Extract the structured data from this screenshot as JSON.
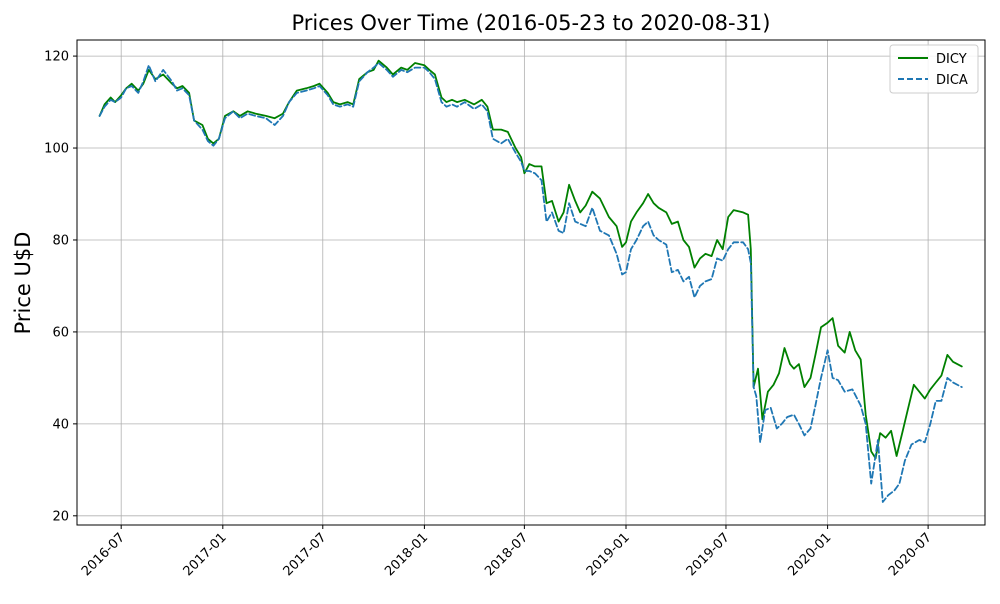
{
  "chart_data": {
    "type": "line",
    "title": "Prices Over Time (2016-05-23 to 2020-08-31)",
    "xlabel": "",
    "ylabel": "Price U$D",
    "x_range": [
      "2016-04-12",
      "2020-10-12"
    ],
    "ylim": [
      18,
      123.5
    ],
    "x_ticks": [
      "2016-07",
      "2017-01",
      "2017-07",
      "2018-01",
      "2018-07",
      "2019-01",
      "2019-07",
      "2020-01",
      "2020-07"
    ],
    "y_ticks": [
      20,
      40,
      60,
      80,
      100,
      120
    ],
    "grid": true,
    "legend_position": "top-right",
    "series": [
      {
        "name": "DICY",
        "color": "#008000",
        "style": "solid",
        "points": [
          [
            "2016-05-23",
            107
          ],
          [
            "2016-06-01",
            109.5
          ],
          [
            "2016-06-12",
            111
          ],
          [
            "2016-06-20",
            110
          ],
          [
            "2016-07-01",
            111.5
          ],
          [
            "2016-07-10",
            113
          ],
          [
            "2016-07-20",
            114
          ],
          [
            "2016-08-01",
            112.5
          ],
          [
            "2016-08-10",
            114
          ],
          [
            "2016-08-20",
            117
          ],
          [
            "2016-09-01",
            115
          ],
          [
            "2016-09-15",
            116
          ],
          [
            "2016-10-01",
            114
          ],
          [
            "2016-10-10",
            113
          ],
          [
            "2016-10-20",
            113.5
          ],
          [
            "2016-11-01",
            112
          ],
          [
            "2016-11-10",
            106
          ],
          [
            "2016-11-25",
            105
          ],
          [
            "2016-12-05",
            102
          ],
          [
            "2016-12-15",
            101
          ],
          [
            "2016-12-25",
            102
          ],
          [
            "2017-01-05",
            107
          ],
          [
            "2017-01-20",
            108
          ],
          [
            "2017-02-01",
            107
          ],
          [
            "2017-02-15",
            108
          ],
          [
            "2017-03-01",
            107.5
          ],
          [
            "2017-03-20",
            107
          ],
          [
            "2017-04-05",
            106.5
          ],
          [
            "2017-04-20",
            107.5
          ],
          [
            "2017-05-01",
            110
          ],
          [
            "2017-05-15",
            112.5
          ],
          [
            "2017-06-01",
            113
          ],
          [
            "2017-06-15",
            113.5
          ],
          [
            "2017-06-25",
            114
          ],
          [
            "2017-07-10",
            112
          ],
          [
            "2017-07-20",
            110
          ],
          [
            "2017-08-01",
            109.5
          ],
          [
            "2017-08-15",
            110
          ],
          [
            "2017-08-25",
            109.5
          ],
          [
            "2017-09-05",
            115
          ],
          [
            "2017-09-20",
            116.5
          ],
          [
            "2017-10-01",
            117
          ],
          [
            "2017-10-10",
            119
          ],
          [
            "2017-10-25",
            117.5
          ],
          [
            "2017-11-05",
            116
          ],
          [
            "2017-11-20",
            117.5
          ],
          [
            "2017-12-01",
            117
          ],
          [
            "2017-12-15",
            118.5
          ],
          [
            "2018-01-01",
            118
          ],
          [
            "2018-01-10",
            117
          ],
          [
            "2018-01-20",
            116
          ],
          [
            "2018-02-01",
            111
          ],
          [
            "2018-02-10",
            110
          ],
          [
            "2018-02-20",
            110.5
          ],
          [
            "2018-03-01",
            110
          ],
          [
            "2018-03-15",
            110.5
          ],
          [
            "2018-04-01",
            109.5
          ],
          [
            "2018-04-15",
            110.5
          ],
          [
            "2018-04-25",
            109
          ],
          [
            "2018-05-05",
            104
          ],
          [
            "2018-05-20",
            104
          ],
          [
            "2018-06-01",
            103.5
          ],
          [
            "2018-06-15",
            100
          ],
          [
            "2018-06-25",
            98
          ],
          [
            "2018-07-01",
            94.5
          ],
          [
            "2018-07-10",
            96.5
          ],
          [
            "2018-07-20",
            96
          ],
          [
            "2018-08-01",
            96
          ],
          [
            "2018-08-10",
            88
          ],
          [
            "2018-08-20",
            88.5
          ],
          [
            "2018-09-01",
            84
          ],
          [
            "2018-09-10",
            86
          ],
          [
            "2018-09-20",
            92
          ],
          [
            "2018-10-01",
            88.5
          ],
          [
            "2018-10-10",
            86
          ],
          [
            "2018-10-20",
            87.5
          ],
          [
            "2018-11-01",
            90.5
          ],
          [
            "2018-11-15",
            89
          ],
          [
            "2018-12-01",
            85
          ],
          [
            "2018-12-15",
            83
          ],
          [
            "2018-12-25",
            78.5
          ],
          [
            "2019-01-01",
            79.5
          ],
          [
            "2019-01-10",
            84
          ],
          [
            "2019-01-20",
            86
          ],
          [
            "2019-02-01",
            88
          ],
          [
            "2019-02-10",
            90
          ],
          [
            "2019-02-20",
            88
          ],
          [
            "2019-03-01",
            87
          ],
          [
            "2019-03-15",
            86
          ],
          [
            "2019-03-25",
            83.5
          ],
          [
            "2019-04-05",
            84
          ],
          [
            "2019-04-15",
            80
          ],
          [
            "2019-04-25",
            78.5
          ],
          [
            "2019-05-05",
            74
          ],
          [
            "2019-05-15",
            76
          ],
          [
            "2019-05-25",
            77
          ],
          [
            "2019-06-05",
            76.5
          ],
          [
            "2019-06-15",
            80
          ],
          [
            "2019-06-25",
            78
          ],
          [
            "2019-07-05",
            85
          ],
          [
            "2019-07-15",
            86.5
          ],
          [
            "2019-08-01",
            86
          ],
          [
            "2019-08-10",
            85.5
          ],
          [
            "2019-08-15",
            78
          ],
          [
            "2019-08-20",
            48
          ],
          [
            "2019-08-28",
            52
          ],
          [
            "2019-09-05",
            41
          ],
          [
            "2019-09-15",
            47
          ],
          [
            "2019-09-25",
            48.5
          ],
          [
            "2019-10-05",
            51
          ],
          [
            "2019-10-15",
            56.5
          ],
          [
            "2019-10-25",
            53
          ],
          [
            "2019-11-01",
            52
          ],
          [
            "2019-11-10",
            53
          ],
          [
            "2019-11-20",
            48
          ],
          [
            "2019-12-01",
            50
          ],
          [
            "2019-12-10",
            55
          ],
          [
            "2019-12-20",
            61
          ],
          [
            "2020-01-01",
            62
          ],
          [
            "2020-01-10",
            63
          ],
          [
            "2020-01-20",
            57
          ],
          [
            "2020-02-01",
            55.5
          ],
          [
            "2020-02-10",
            60
          ],
          [
            "2020-02-20",
            56
          ],
          [
            "2020-03-01",
            54
          ],
          [
            "2020-03-10",
            42
          ],
          [
            "2020-03-20",
            34
          ],
          [
            "2020-03-28",
            32.5
          ],
          [
            "2020-04-05",
            38
          ],
          [
            "2020-04-15",
            37
          ],
          [
            "2020-04-25",
            38.5
          ],
          [
            "2020-05-05",
            33
          ],
          [
            "2020-05-15",
            38
          ],
          [
            "2020-05-25",
            43
          ],
          [
            "2020-06-05",
            48.5
          ],
          [
            "2020-06-15",
            47
          ],
          [
            "2020-06-25",
            45.5
          ],
          [
            "2020-07-05",
            47.5
          ],
          [
            "2020-07-15",
            49
          ],
          [
            "2020-07-25",
            50.5
          ],
          [
            "2020-08-05",
            55
          ],
          [
            "2020-08-15",
            53.5
          ],
          [
            "2020-08-31",
            52.5
          ]
        ]
      },
      {
        "name": "DICA",
        "color": "#1f77b4",
        "style": "dashed",
        "points": [
          [
            "2016-05-23",
            107
          ],
          [
            "2016-06-01",
            109
          ],
          [
            "2016-06-12",
            110.5
          ],
          [
            "2016-06-20",
            110
          ],
          [
            "2016-07-01",
            111
          ],
          [
            "2016-07-10",
            113
          ],
          [
            "2016-07-20",
            113.5
          ],
          [
            "2016-08-01",
            112
          ],
          [
            "2016-08-10",
            114.5
          ],
          [
            "2016-08-20",
            118
          ],
          [
            "2016-09-01",
            114.5
          ],
          [
            "2016-09-15",
            117
          ],
          [
            "2016-10-01",
            114.5
          ],
          [
            "2016-10-10",
            112.5
          ],
          [
            "2016-10-20",
            113
          ],
          [
            "2016-11-01",
            111.5
          ],
          [
            "2016-11-10",
            106
          ],
          [
            "2016-11-25",
            104
          ],
          [
            "2016-12-05",
            101.5
          ],
          [
            "2016-12-15",
            100.5
          ],
          [
            "2016-12-25",
            102
          ],
          [
            "2017-01-05",
            106.5
          ],
          [
            "2017-01-20",
            108
          ],
          [
            "2017-02-01",
            106.5
          ],
          [
            "2017-02-15",
            107.5
          ],
          [
            "2017-03-01",
            107
          ],
          [
            "2017-03-20",
            106.5
          ],
          [
            "2017-04-05",
            105
          ],
          [
            "2017-04-20",
            107
          ],
          [
            "2017-05-01",
            110
          ],
          [
            "2017-05-15",
            112
          ],
          [
            "2017-06-01",
            112.5
          ],
          [
            "2017-06-15",
            113
          ],
          [
            "2017-06-25",
            113.5
          ],
          [
            "2017-07-10",
            111.5
          ],
          [
            "2017-07-20",
            109.5
          ],
          [
            "2017-08-01",
            109
          ],
          [
            "2017-08-15",
            109.5
          ],
          [
            "2017-08-25",
            109
          ],
          [
            "2017-09-05",
            114.5
          ],
          [
            "2017-09-20",
            116.5
          ],
          [
            "2017-10-01",
            117.5
          ],
          [
            "2017-10-10",
            118.5
          ],
          [
            "2017-10-25",
            117
          ],
          [
            "2017-11-05",
            115.5
          ],
          [
            "2017-11-20",
            117
          ],
          [
            "2017-12-01",
            116.5
          ],
          [
            "2017-12-15",
            117.5
          ],
          [
            "2018-01-01",
            117.5
          ],
          [
            "2018-01-10",
            116.5
          ],
          [
            "2018-01-20",
            115
          ],
          [
            "2018-02-01",
            110
          ],
          [
            "2018-02-10",
            109
          ],
          [
            "2018-02-20",
            109.5
          ],
          [
            "2018-03-01",
            109
          ],
          [
            "2018-03-15",
            110
          ],
          [
            "2018-04-01",
            108.5
          ],
          [
            "2018-04-15",
            109.5
          ],
          [
            "2018-04-25",
            108
          ],
          [
            "2018-05-05",
            102
          ],
          [
            "2018-05-20",
            101
          ],
          [
            "2018-06-01",
            102
          ],
          [
            "2018-06-15",
            99
          ],
          [
            "2018-06-25",
            97
          ],
          [
            "2018-07-01",
            95
          ],
          [
            "2018-07-10",
            95
          ],
          [
            "2018-07-20",
            94.5
          ],
          [
            "2018-08-01",
            93
          ],
          [
            "2018-08-10",
            84
          ],
          [
            "2018-08-20",
            86
          ],
          [
            "2018-09-01",
            82
          ],
          [
            "2018-09-10",
            81.5
          ],
          [
            "2018-09-20",
            88
          ],
          [
            "2018-10-01",
            84
          ],
          [
            "2018-10-10",
            83.5
          ],
          [
            "2018-10-20",
            83
          ],
          [
            "2018-11-01",
            87
          ],
          [
            "2018-11-15",
            82
          ],
          [
            "2018-12-01",
            81
          ],
          [
            "2018-12-15",
            77
          ],
          [
            "2018-12-25",
            72.5
          ],
          [
            "2019-01-01",
            73
          ],
          [
            "2019-01-10",
            78
          ],
          [
            "2019-01-20",
            80
          ],
          [
            "2019-02-01",
            83
          ],
          [
            "2019-02-10",
            84
          ],
          [
            "2019-02-20",
            81
          ],
          [
            "2019-03-01",
            80
          ],
          [
            "2019-03-15",
            79
          ],
          [
            "2019-03-25",
            73
          ],
          [
            "2019-04-05",
            73.5
          ],
          [
            "2019-04-15",
            71
          ],
          [
            "2019-04-25",
            72
          ],
          [
            "2019-05-05",
            67.5
          ],
          [
            "2019-05-15",
            70
          ],
          [
            "2019-05-25",
            71
          ],
          [
            "2019-06-05",
            71.5
          ],
          [
            "2019-06-15",
            76
          ],
          [
            "2019-06-25",
            75.5
          ],
          [
            "2019-07-05",
            78
          ],
          [
            "2019-07-15",
            79.5
          ],
          [
            "2019-08-01",
            79.5
          ],
          [
            "2019-08-10",
            78
          ],
          [
            "2019-08-15",
            75
          ],
          [
            "2019-08-20",
            48
          ],
          [
            "2019-08-25",
            46
          ],
          [
            "2019-09-01",
            36
          ],
          [
            "2019-09-10",
            43
          ],
          [
            "2019-09-20",
            43.5
          ],
          [
            "2019-10-01",
            39
          ],
          [
            "2019-10-10",
            40
          ],
          [
            "2019-10-20",
            41.5
          ],
          [
            "2019-11-01",
            42
          ],
          [
            "2019-11-10",
            40
          ],
          [
            "2019-11-20",
            37.5
          ],
          [
            "2019-12-01",
            39
          ],
          [
            "2019-12-10",
            44
          ],
          [
            "2019-12-20",
            50
          ],
          [
            "2020-01-01",
            56
          ],
          [
            "2020-01-10",
            50
          ],
          [
            "2020-01-20",
            49.5
          ],
          [
            "2020-02-01",
            47
          ],
          [
            "2020-02-15",
            47.5
          ],
          [
            "2020-03-01",
            44
          ],
          [
            "2020-03-10",
            40
          ],
          [
            "2020-03-20",
            27
          ],
          [
            "2020-04-01",
            36.5
          ],
          [
            "2020-04-10",
            23
          ],
          [
            "2020-04-20",
            24.5
          ],
          [
            "2020-05-01",
            25.5
          ],
          [
            "2020-05-10",
            27
          ],
          [
            "2020-05-20",
            32
          ],
          [
            "2020-06-01",
            35.5
          ],
          [
            "2020-06-15",
            36.5
          ],
          [
            "2020-06-25",
            36
          ],
          [
            "2020-07-05",
            40
          ],
          [
            "2020-07-15",
            45
          ],
          [
            "2020-07-25",
            45
          ],
          [
            "2020-08-05",
            50
          ],
          [
            "2020-08-15",
            49
          ],
          [
            "2020-08-31",
            48
          ]
        ]
      }
    ]
  }
}
